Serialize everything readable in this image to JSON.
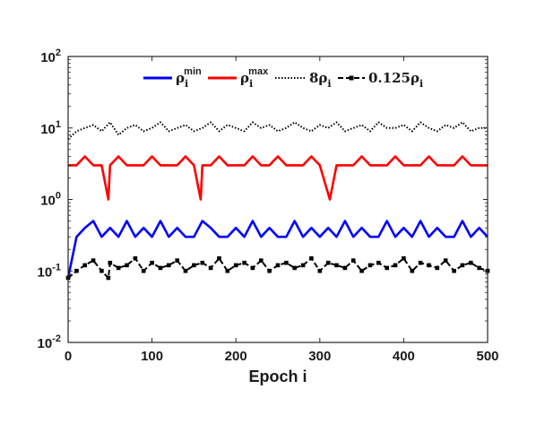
{
  "chart_data": {
    "type": "line",
    "xlabel": "Epoch i",
    "ylabel": "",
    "xlim": [
      0,
      500
    ],
    "ylim": [
      0.01,
      100
    ],
    "yscale": "log",
    "xticks": [
      "0",
      "100",
      "200",
      "300",
      "400",
      "500"
    ],
    "yticks": [
      {
        "base": "10",
        "exp": "2"
      },
      {
        "base": "10",
        "exp": "1"
      },
      {
        "base": "10",
        "exp": "0"
      },
      {
        "base": "10",
        "exp": "-1"
      },
      {
        "base": "10",
        "exp": "-2"
      }
    ],
    "legend_position": "top-center",
    "series": [
      {
        "key": "rho_min",
        "legend": {
          "prefix": "ρ",
          "sub": "i",
          "sup": "min"
        },
        "color": "#0000ff",
        "style": "solid",
        "marker": "none",
        "x": [
          0,
          10,
          20,
          30,
          40,
          50,
          60,
          70,
          80,
          90,
          100,
          110,
          120,
          130,
          140,
          150,
          160,
          170,
          180,
          190,
          200,
          210,
          220,
          230,
          240,
          250,
          260,
          270,
          280,
          290,
          300,
          310,
          320,
          330,
          340,
          350,
          360,
          370,
          380,
          390,
          400,
          410,
          420,
          430,
          440,
          450,
          460,
          470,
          480,
          490,
          500
        ],
        "values": [
          0.08,
          0.3,
          0.4,
          0.5,
          0.3,
          0.4,
          0.3,
          0.5,
          0.3,
          0.4,
          0.3,
          0.5,
          0.3,
          0.4,
          0.3,
          0.3,
          0.5,
          0.4,
          0.3,
          0.3,
          0.4,
          0.3,
          0.5,
          0.3,
          0.4,
          0.3,
          0.3,
          0.5,
          0.3,
          0.4,
          0.3,
          0.4,
          0.3,
          0.5,
          0.3,
          0.4,
          0.3,
          0.3,
          0.5,
          0.3,
          0.4,
          0.3,
          0.5,
          0.3,
          0.4,
          0.3,
          0.3,
          0.5,
          0.3,
          0.4,
          0.3
        ]
      },
      {
        "key": "rho_max",
        "legend": {
          "prefix": "ρ",
          "sub": "i",
          "sup": "max"
        },
        "color": "#ff0000",
        "style": "solid",
        "marker": "none",
        "x": [
          0,
          10,
          20,
          30,
          40,
          48,
          50,
          60,
          70,
          80,
          90,
          100,
          110,
          120,
          130,
          140,
          150,
          158,
          160,
          170,
          180,
          190,
          200,
          210,
          220,
          230,
          240,
          250,
          260,
          270,
          280,
          290,
          300,
          312,
          320,
          330,
          340,
          350,
          360,
          370,
          380,
          390,
          400,
          410,
          420,
          430,
          440,
          450,
          460,
          470,
          480,
          490,
          500
        ],
        "values": [
          3,
          3,
          4,
          3,
          3,
          1,
          3,
          4,
          3,
          3,
          3,
          4,
          3,
          3,
          3,
          4,
          3,
          1,
          3,
          3,
          4,
          3,
          3,
          3,
          4,
          3,
          3,
          4,
          3,
          3,
          3,
          4,
          3,
          1,
          3,
          3,
          3,
          4,
          3,
          3,
          3,
          4,
          3,
          3,
          3,
          4,
          3,
          3,
          3,
          4,
          3,
          3,
          3
        ]
      },
      {
        "key": "eight_rho",
        "legend": {
          "prefix": "8ρ",
          "sub": "i",
          "sup": ""
        },
        "color": "#000000",
        "style": "dotted",
        "marker": "none",
        "x": [
          0,
          10,
          20,
          30,
          40,
          50,
          60,
          70,
          80,
          90,
          100,
          110,
          120,
          130,
          140,
          150,
          160,
          170,
          180,
          190,
          200,
          210,
          220,
          230,
          240,
          250,
          260,
          270,
          280,
          290,
          300,
          310,
          320,
          330,
          340,
          350,
          360,
          370,
          380,
          390,
          400,
          410,
          420,
          430,
          440,
          450,
          460,
          470,
          480,
          490,
          500
        ],
        "values": [
          7,
          9,
          10,
          11,
          9,
          12,
          8,
          10,
          11,
          9,
          10,
          12,
          9,
          10,
          11,
          9,
          10,
          12,
          9,
          11,
          10,
          9,
          12,
          10,
          11,
          9,
          10,
          12,
          10,
          9,
          11,
          10,
          12,
          9,
          10,
          11,
          9,
          12,
          10,
          10,
          11,
          9,
          12,
          10,
          9,
          11,
          10,
          12,
          9,
          10,
          10
        ]
      },
      {
        "key": "eighth_rho",
        "legend": {
          "prefix": "0.125ρ",
          "sub": "i",
          "sup": ""
        },
        "color": "#000000",
        "style": "dashed",
        "marker": "square",
        "x": [
          0,
          10,
          20,
          30,
          40,
          48,
          50,
          60,
          70,
          80,
          90,
          100,
          110,
          120,
          130,
          140,
          150,
          160,
          170,
          180,
          190,
          200,
          210,
          220,
          230,
          240,
          250,
          260,
          270,
          280,
          290,
          300,
          310,
          320,
          330,
          340,
          350,
          360,
          370,
          380,
          390,
          400,
          410,
          420,
          430,
          440,
          450,
          460,
          470,
          480,
          490,
          500
        ],
        "values": [
          0.08,
          0.1,
          0.12,
          0.14,
          0.1,
          0.08,
          0.13,
          0.11,
          0.12,
          0.15,
          0.1,
          0.13,
          0.11,
          0.12,
          0.14,
          0.1,
          0.12,
          0.13,
          0.11,
          0.15,
          0.1,
          0.12,
          0.13,
          0.11,
          0.14,
          0.1,
          0.12,
          0.13,
          0.11,
          0.12,
          0.15,
          0.1,
          0.13,
          0.12,
          0.11,
          0.14,
          0.1,
          0.12,
          0.13,
          0.11,
          0.12,
          0.15,
          0.1,
          0.13,
          0.12,
          0.11,
          0.14,
          0.1,
          0.12,
          0.13,
          0.11,
          0.1
        ]
      }
    ]
  }
}
